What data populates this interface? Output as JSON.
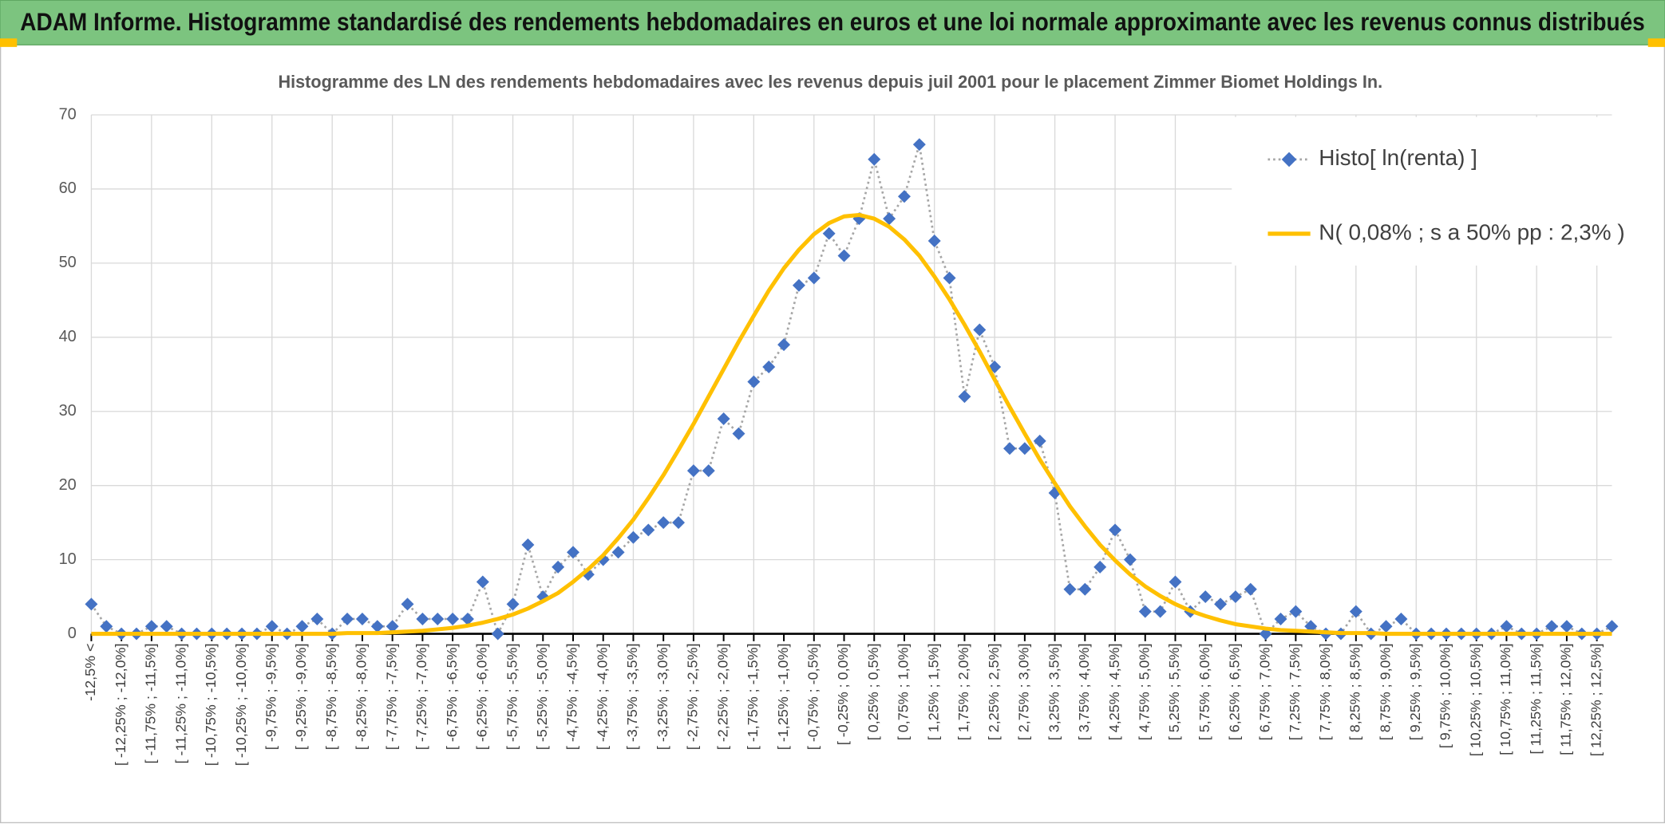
{
  "header": {
    "title": "ADAM Informe. Histogramme standardisé des rendements hebdomadaires en euros et une loi normale approximante avec les revenus connus distribués"
  },
  "chart_data": {
    "type": "line",
    "title": "Histogramme des LN des rendements hebdomadaires avec les revenus depuis juil 2001 pour le placement Zimmer Biomet Holdings In.",
    "categories": [
      "-12,5% <",
      null,
      "[ -12,25% ; -12,0%]",
      null,
      "[ -11,75% ; -11,5%]",
      null,
      "[ -11,25% ; -11,0%]",
      null,
      "[ -10,75% ; -10,5%]",
      null,
      "[ -10,25% ; -10,0%]",
      null,
      "[ -9,75% ; -9,5%]",
      null,
      "[ -9,25% ; -9,0%]",
      null,
      "[ -8,75% ; -8,5%]",
      null,
      "[ -8,25% ; -8,0%]",
      null,
      "[ -7,75% ; -7,5%]",
      null,
      "[ -7,25% ; -7,0%]",
      null,
      "[ -6,75% ; -6,5%]",
      null,
      "[ -6,25% ; -6,0%]",
      null,
      "[ -5,75% ; -5,5%]",
      null,
      "[ -5,25% ; -5,0%]",
      null,
      "[ -4,75% ; -4,5%]",
      null,
      "[ -4,25% ; -4,0%]",
      null,
      "[ -3,75% ; -3,5%]",
      null,
      "[ -3,25% ; -3,0%]",
      null,
      "[ -2,75% ; -2,5%]",
      null,
      "[ -2,25% ; -2,0%]",
      null,
      "[ -1,75% ; -1,5%]",
      null,
      "[ -1,25% ; -1,0%]",
      null,
      "[ -0,75% ; -0,5%]",
      null,
      "[ -0,25% ; 0,0%]",
      null,
      "[ 0,25% ; 0,5%]",
      null,
      "[ 0,75% ; 1,0%]",
      null,
      "[ 1,25% ; 1,5%]",
      null,
      "[ 1,75% ; 2,0%]",
      null,
      "[ 2,25% ; 2,5%]",
      null,
      "[ 2,75% ; 3,0%]",
      null,
      "[ 3,25% ; 3,5%]",
      null,
      "[ 3,75% ; 4,0%]",
      null,
      "[ 4,25% ; 4,5%]",
      null,
      "[ 4,75% ; 5,0%]",
      null,
      "[ 5,25% ; 5,5%]",
      null,
      "[ 5,75% ; 6,0%]",
      null,
      "[ 6,25% ; 6,5%]",
      null,
      "[ 6,75% ; 7,0%]",
      null,
      "[ 7,25% ; 7,5%]",
      null,
      "[ 7,75% ; 8,0%]",
      null,
      "[ 8,25% ; 8,5%]",
      null,
      "[ 8,75% ; 9,0%]",
      null,
      "[ 9,25% ; 9,5%]",
      null,
      "[ 9,75% ; 10,0%]",
      null,
      "[ 10,25% ; 10,5%]",
      null,
      "[ 10,75% ; 11,0%]",
      null,
      "[ 11,25% ; 11,5%]",
      null,
      "[ 11,75% ; 12,0%]",
      null,
      "[ 12,25% ; 12,5%]",
      null
    ],
    "series": [
      {
        "name": "Histo[ ln(renta) ]",
        "color": "#4472c4",
        "line_color": "#a6a6a6",
        "line_style": "dotted",
        "marker": "diamond",
        "values": [
          4,
          1,
          0,
          0,
          1,
          1,
          0,
          0,
          0,
          0,
          0,
          0,
          1,
          0,
          1,
          2,
          0,
          2,
          2,
          1,
          1,
          4,
          2,
          2,
          2,
          2,
          7,
          0,
          4,
          12,
          5,
          9,
          11,
          8,
          10,
          11,
          13,
          14,
          15,
          15,
          22,
          22,
          29,
          27,
          34,
          36,
          39,
          47,
          48,
          54,
          51,
          56,
          64,
          56,
          59,
          66,
          53,
          48,
          32,
          41,
          36,
          25,
          25,
          26,
          19,
          6,
          6,
          9,
          14,
          10,
          3,
          3,
          7,
          3,
          5,
          4,
          5,
          6,
          0,
          2,
          3,
          1,
          0,
          0,
          3,
          0,
          1,
          2,
          0,
          0,
          0,
          0,
          0,
          0,
          1,
          0,
          0,
          1,
          1,
          0,
          0,
          1
        ]
      },
      {
        "name": "N( 0,08% ; s a 50% pp : 2,3% )",
        "color": "#ffc000",
        "line_color": "#ffc000",
        "line_style": "solid",
        "marker": "none",
        "values": [
          0,
          0,
          0,
          0,
          0,
          0,
          0,
          0,
          0,
          0,
          0,
          0,
          0,
          0,
          0,
          0,
          0,
          0.1,
          0.1,
          0.1,
          0.2,
          0.3,
          0.4,
          0.6,
          0.8,
          1.1,
          1.5,
          2.0,
          2.6,
          3.4,
          4.4,
          5.5,
          7.0,
          8.7,
          10.6,
          12.9,
          15.4,
          18.3,
          21.4,
          24.8,
          28.3,
          32.0,
          35.7,
          39.4,
          42.9,
          46.3,
          49.3,
          51.8,
          53.9,
          55.4,
          56.3,
          56.5,
          56.0,
          54.9,
          53.2,
          51.0,
          48.2,
          45.1,
          41.7,
          38.1,
          34.3,
          30.6,
          27.0,
          23.5,
          20.3,
          17.2,
          14.5,
          12.0,
          9.9,
          8.0,
          6.4,
          5.1,
          4.0,
          3.1,
          2.4,
          1.8,
          1.3,
          1.0,
          0.7,
          0.5,
          0.4,
          0.3,
          0.2,
          0.1,
          0.1,
          0.1,
          0,
          0,
          0,
          0,
          0,
          0,
          0,
          0,
          0,
          0,
          0,
          0,
          0,
          0,
          0,
          0
        ]
      }
    ],
    "ylim": [
      0,
      70
    ],
    "yticks": [
      0,
      10,
      20,
      30,
      40,
      50,
      60,
      70
    ],
    "grid": true,
    "legend": "upper right"
  }
}
